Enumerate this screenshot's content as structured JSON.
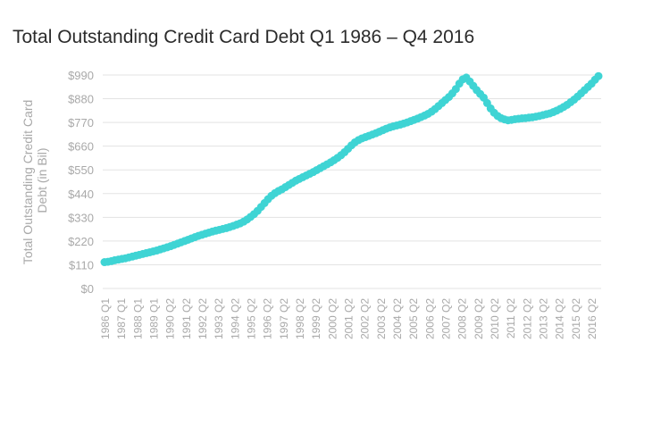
{
  "colors": {
    "accent": "#3fd4d4",
    "grid": "#e3e3e3",
    "tick_text": "#a9a9a9",
    "title_text": "#2b2b2b"
  },
  "chart_data": {
    "type": "scatter",
    "title": "Total Outstanding Credit Card Debt Q1 1986 – Q4 2016",
    "xlabel": "",
    "ylabel_lines": [
      "Total Outstanding Credit Card",
      "Debt (in Bil)"
    ],
    "ylim": [
      0,
      990
    ],
    "y_ticks": [
      "$0",
      "$110",
      "$220",
      "$330",
      "$440",
      "$550",
      "$660",
      "$770",
      "$880",
      "$990"
    ],
    "y_tick_values": [
      0,
      110,
      220,
      330,
      440,
      550,
      660,
      770,
      880,
      990
    ],
    "grid": true,
    "x_tick_labels": [
      "1986 Q1",
      "1987 Q1",
      "1988 Q1",
      "1989 Q1",
      "1990 Q2",
      "1991 Q2",
      "1992 Q2",
      "1993 Q2",
      "1994 Q2",
      "1995 Q2",
      "1996 Q2",
      "1997 Q2",
      "1998 Q2",
      "1999 Q2",
      "2000 Q2",
      "2001 Q2",
      "2002 Q2",
      "2003 Q2",
      "2004 Q2",
      "2005 Q2",
      "2006 Q2",
      "2007 Q2",
      "2008 Q2",
      "2009 Q2",
      "2010 Q2",
      "2011 Q2",
      "2012 Q2",
      "2013 Q2",
      "2014 Q2",
      "2015 Q2",
      "2016 Q2"
    ],
    "series": [
      {
        "values": [
          122,
          124,
          127,
          131,
          134,
          137,
          140,
          144,
          148,
          152,
          156,
          160,
          164,
          168,
          172,
          176,
          181,
          186,
          191,
          196,
          202,
          208,
          214,
          220,
          226,
          232,
          238,
          244,
          249,
          254,
          259,
          264,
          268,
          272,
          276,
          280,
          285,
          290,
          296,
          302,
          310,
          320,
          332,
          345,
          360,
          378,
          396,
          414,
          430,
          442,
          452,
          460,
          470,
          480,
          490,
          500,
          508,
          516,
          524,
          532,
          540,
          549,
          558,
          567,
          576,
          585,
          595,
          606,
          618,
          632,
          648,
          664,
          678,
          688,
          696,
          702,
          708,
          714,
          720,
          727,
          734,
          741,
          747,
          752,
          756,
          760,
          765,
          770,
          776,
          782,
          788,
          795,
          802,
          810,
          820,
          832,
          846,
          860,
          874,
          888,
          905,
          925,
          950,
          970,
          978,
          960,
          940,
          920,
          902,
          885,
          860,
          835,
          815,
          800,
          790,
          784,
          780,
          782,
          785,
          787,
          789,
          790,
          792,
          794,
          797,
          800,
          804,
          808,
          812,
          818,
          825,
          833,
          842,
          852,
          864,
          876,
          890,
          905,
          920,
          935,
          950,
          968,
          985
        ]
      }
    ]
  }
}
